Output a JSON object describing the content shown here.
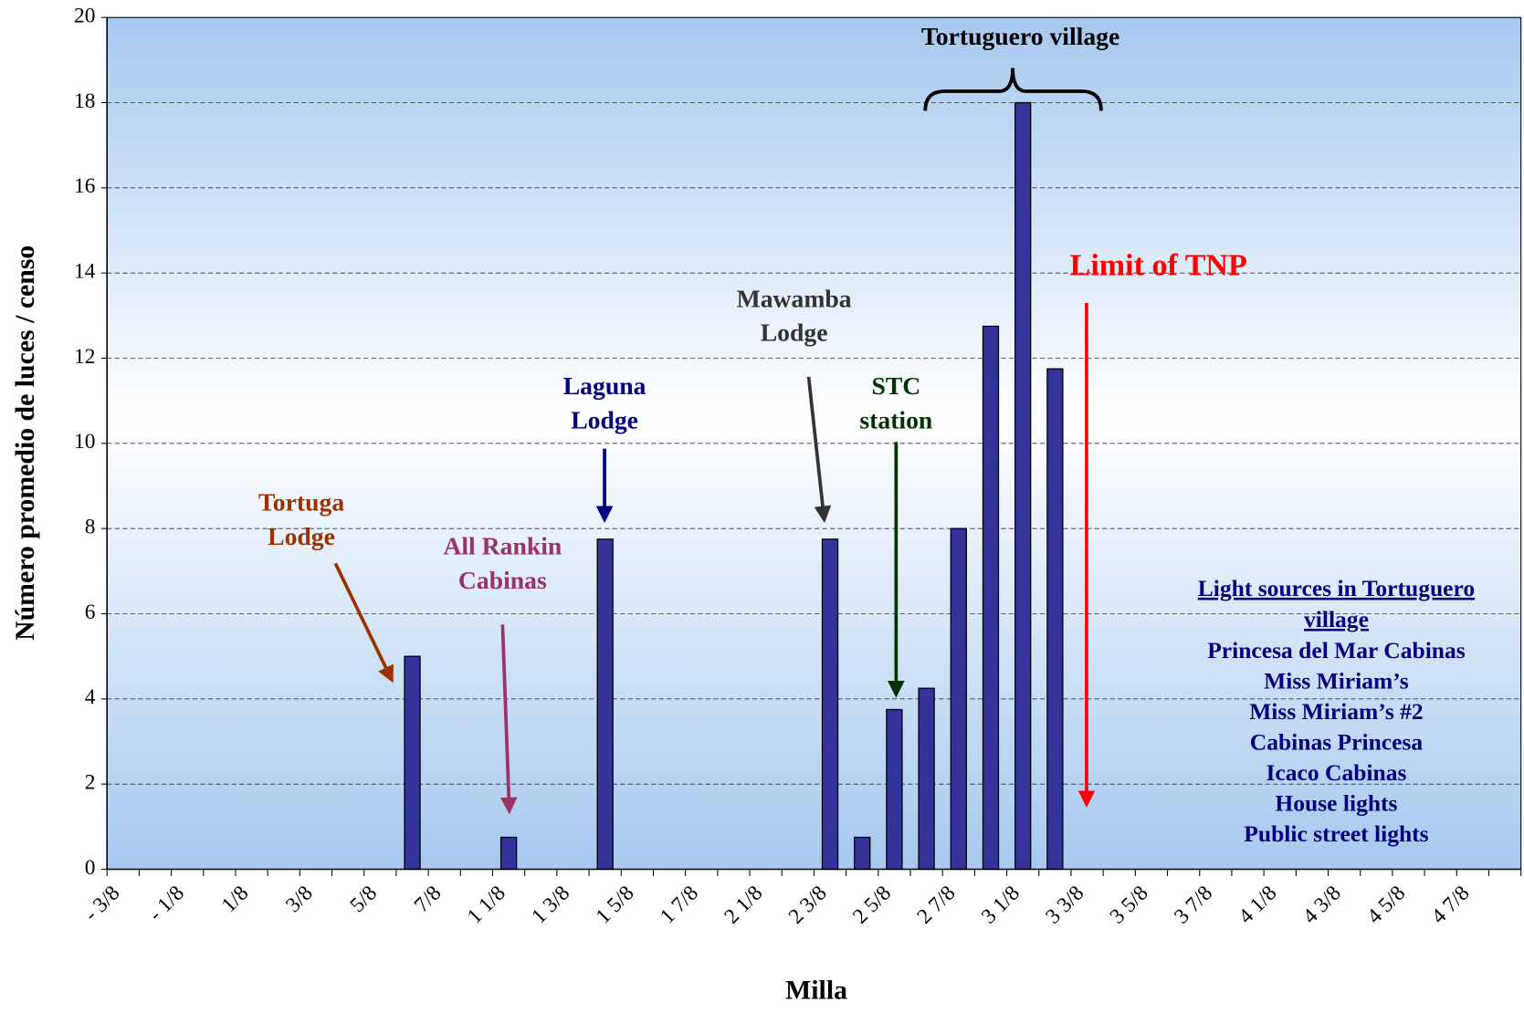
{
  "chart_data": {
    "type": "bar",
    "x_label": "Milla",
    "y_label": "Número promedio de luces / censo",
    "categories": [
      "- 3/8",
      null,
      "- 1/8",
      null,
      "1/8",
      null,
      "3/8",
      null,
      "5/8",
      null,
      "7/8",
      null,
      "1 1/8",
      null,
      "1 3/8",
      null,
      "1 5/8",
      null,
      "1 7/8",
      null,
      "2 1/8",
      null,
      "2 3/8",
      null,
      "2 5/8",
      null,
      "2 7/8",
      null,
      "3 1/8",
      null,
      "3 3/8",
      null,
      "3 5/8",
      null,
      "3 7/8",
      null,
      "4 1/8",
      null,
      "4 3/8",
      null,
      "4 5/8",
      null,
      "4 7/8",
      null
    ],
    "values": [
      0,
      0,
      0,
      0,
      0,
      0,
      0,
      0,
      0,
      5,
      0,
      0,
      0.75,
      0,
      0,
      7.75,
      0,
      0,
      0,
      0,
      0,
      0,
      7.75,
      0.75,
      3.75,
      4.25,
      8,
      12.75,
      18,
      11.75,
      0,
      0,
      0,
      0,
      0,
      0,
      0,
      0,
      0,
      0,
      0,
      0,
      0,
      0
    ],
    "color": "#333399",
    "ylim": [
      0,
      20
    ],
    "yticks": [
      0,
      2,
      4,
      6,
      8,
      10,
      12,
      14,
      16,
      18,
      20
    ],
    "grid": true,
    "annotations": [
      {
        "lines": [
          "Tortuga",
          "Lodge"
        ],
        "color": "#993300"
      },
      {
        "lines": [
          "All Rankin",
          "Cabinas"
        ],
        "color": "#993366"
      },
      {
        "lines": [
          "Laguna",
          "Lodge"
        ],
        "color": "#000080"
      },
      {
        "lines": [
          "Mawamba",
          "Lodge"
        ],
        "color": "#333333"
      },
      {
        "lines": [
          "STC",
          "station"
        ],
        "color": "#003300"
      },
      {
        "lines": [
          "Tortuguero village"
        ],
        "color": "#000000"
      },
      {
        "lines": [
          "Limit of TNP"
        ],
        "color": "#ff0000"
      }
    ],
    "legend_box": {
      "title": [
        "Light sources in Tortuguero",
        "village"
      ],
      "color": "#000080",
      "items": [
        "Princesa del Mar Cabinas",
        "Miss Miriam’s",
        "Miss Miriam’s #2",
        "Cabinas Princesa",
        "Icaco Cabinas",
        "House lights",
        "Public street lights"
      ]
    }
  }
}
